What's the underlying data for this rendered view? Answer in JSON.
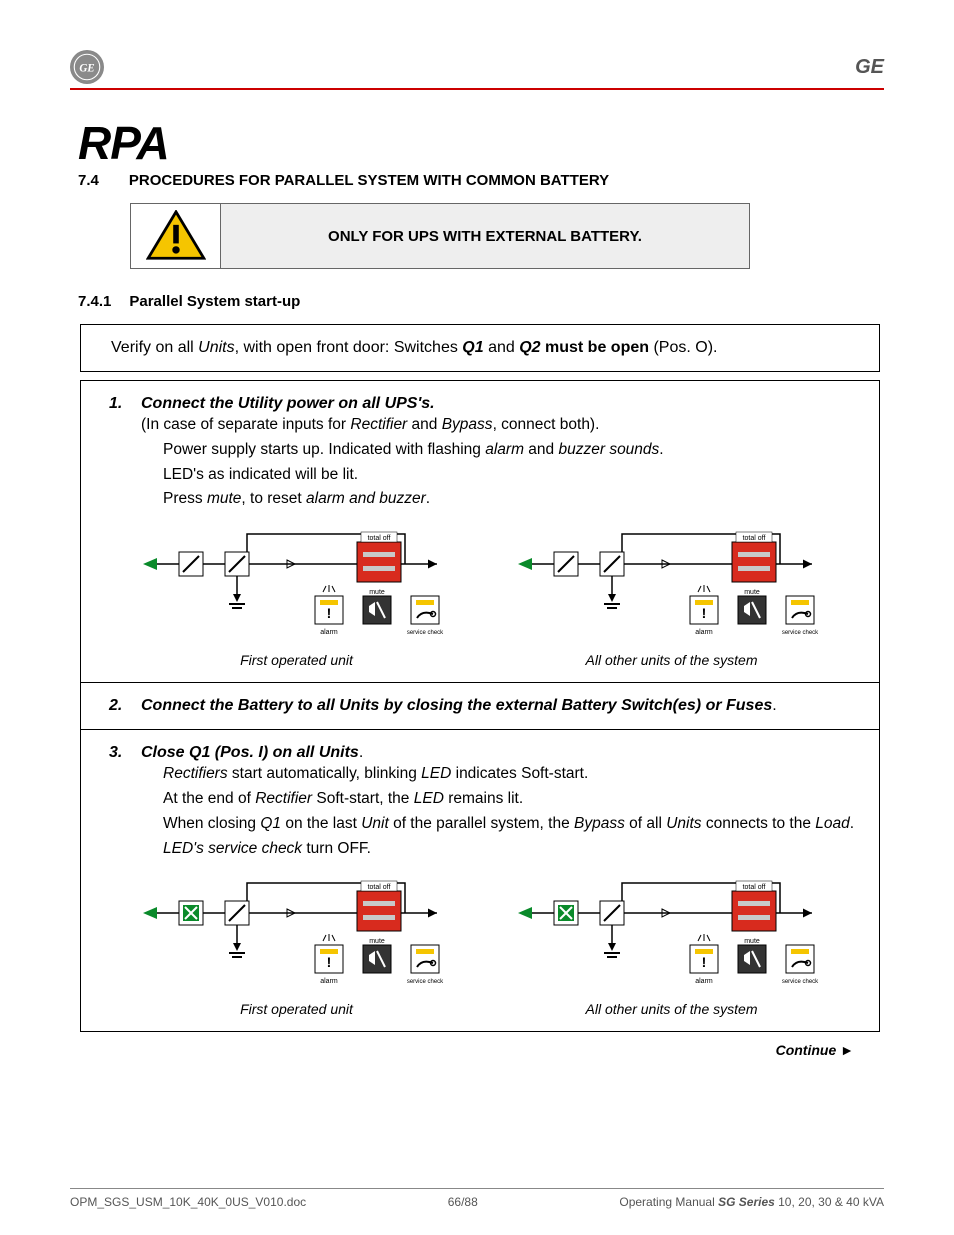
{
  "header": {
    "brand": "GE"
  },
  "logo_title": "RPA",
  "section": {
    "num": "7.4",
    "title": "PROCEDURES FOR PARALLEL SYSTEM WITH COMMON BATTERY"
  },
  "warning_text": "ONLY FOR UPS WITH EXTERNAL BATTERY.",
  "subsection": {
    "num": "7.4.1",
    "title": "Parallel System start-up"
  },
  "verify": {
    "pre": "Verify on all ",
    "units": "Units",
    "mid": ", with open front door: Switches ",
    "q1": "Q1",
    "and": " and ",
    "q2": "Q2",
    "mustopen": " must be open",
    "tail": " (Pos. O)."
  },
  "step1": {
    "num": "1.",
    "title": "Connect the Utility power on all UPS's.",
    "line1a": "(In case of separate inputs for ",
    "rect": "Rectifier",
    "line1b": " and ",
    "bypass": "Bypass",
    "line1c": ", connect both).",
    "line2a": "Power supply starts up. Indicated with flashing ",
    "alarm": "alarm",
    "line2b": " and ",
    "buzzer": "buzzer sounds",
    "line2c": ".",
    "line3": "LED's as indicated will be lit.",
    "line4a": "Press ",
    "mute": "mute",
    "line4b": ", to reset ",
    "ab": "alarm and buzzer",
    "line4c": "."
  },
  "step2": {
    "num": "2.",
    "title_a": "Connect the Battery to all Units by closing the external Battery Switch(es) or Fuses",
    "title_b": "."
  },
  "step3": {
    "num": "3.",
    "title": "Close Q1 (Pos. I) on all Units",
    "title_dot": ".",
    "l1a": "Rectifiers",
    "l1b": " start automatically, blinking ",
    "l1c": "LED",
    "l1d": " indicates Soft-start.",
    "l2a": "At the end of ",
    "l2b": "Rectifier",
    "l2c": " Soft-start, the ",
    "l2d": "LED",
    "l2e": " remains lit.",
    "l3a": "When closing ",
    "l3b": "Q1",
    "l3c": " on the last ",
    "l3d": "Unit",
    "l3e": " of the parallel system, the ",
    "l3f": "Bypass",
    "l3g": " of all ",
    "l3h": "Units",
    "l3i": " connects to the ",
    "l3j": "Load",
    "l3k": ".",
    "l4a": "LED's service check",
    "l4b": " turn OFF."
  },
  "captions": {
    "first": "First operated unit",
    "other": "All other units of the system"
  },
  "continue": "Continue ►",
  "footer": {
    "left": "OPM_SGS_USM_10K_40K_0US_V010.doc",
    "mid": "66/88",
    "right_a": "Operating Manual ",
    "right_b": "SG Series",
    "right_c": " 10, 20, 30 & 40 kVA"
  },
  "diagram": {
    "colors": {
      "green": "#0a8a2a",
      "red": "#d82b1e",
      "gray": "#c8c8c8",
      "yellow": "#f5c500",
      "line": "#000000"
    },
    "labels": {
      "total_off": "total off",
      "mute": "mute",
      "alarm": "alarm",
      "service": "service check"
    }
  }
}
